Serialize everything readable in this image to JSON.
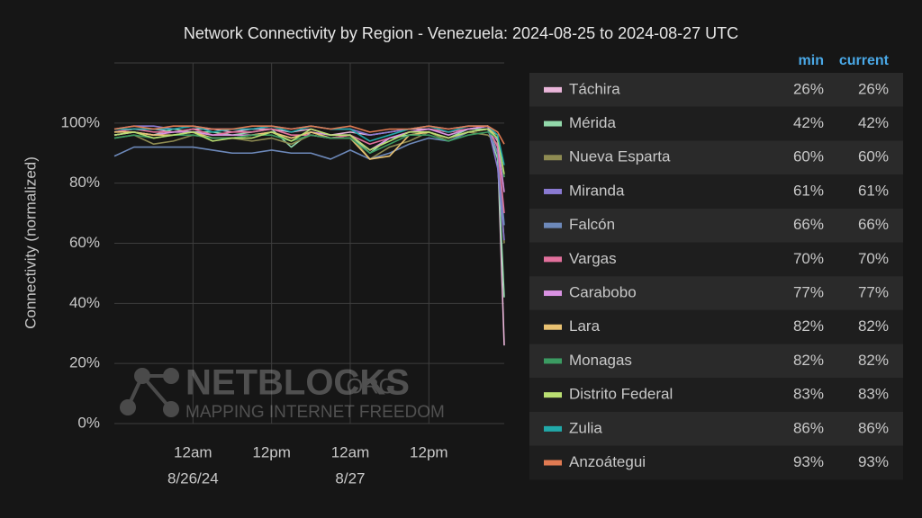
{
  "chart_data": {
    "type": "line",
    "title": "Network Connectivity by Region - Venezuela: 2024-08-25 to 2024-08-27 UTC",
    "y_label": "Connectivity (normalized)",
    "x": [
      0,
      3,
      6,
      9,
      12,
      15,
      18,
      21,
      24,
      27,
      30,
      33,
      36,
      39,
      42,
      45,
      48,
      51,
      54,
      57,
      58.5,
      59.5
    ],
    "xlim": [
      0,
      59.5
    ],
    "xticks": [
      {
        "value": 12,
        "label": "12am"
      },
      {
        "value": 24,
        "label": "12pm"
      },
      {
        "value": 36,
        "label": "12am"
      },
      {
        "value": 48,
        "label": "12pm"
      }
    ],
    "xtick_dates": [
      {
        "value": 12,
        "label": "8/26/24"
      },
      {
        "value": 36,
        "label": "8/27"
      }
    ],
    "ylim": [
      0,
      120
    ],
    "yticks": [
      {
        "value": 0,
        "label": "0%"
      },
      {
        "value": 20,
        "label": "20%"
      },
      {
        "value": 40,
        "label": "40%"
      },
      {
        "value": 60,
        "label": "60%"
      },
      {
        "value": 80,
        "label": "80%"
      },
      {
        "value": 100,
        "label": "100%"
      }
    ],
    "grid": true,
    "legend_headers": [
      "min",
      "current"
    ],
    "series": [
      {
        "name": "Táchira",
        "color": "#eab6da",
        "min": "26%",
        "current": "26%",
        "values": [
          97,
          98,
          98,
          97,
          98,
          98,
          97,
          98,
          98,
          97,
          98,
          96,
          97,
          96,
          97,
          98,
          98,
          97,
          98,
          99,
          90,
          26
        ]
      },
      {
        "name": "Mérida",
        "color": "#92d8aa",
        "min": "42%",
        "current": "42%",
        "values": [
          96,
          97,
          96,
          98,
          97,
          97,
          96,
          97,
          98,
          92,
          97,
          95,
          96,
          90,
          95,
          96,
          97,
          95,
          98,
          98,
          88,
          42
        ]
      },
      {
        "name": "Nueva Esparta",
        "color": "#8e8b52",
        "min": "60%",
        "current": "60%",
        "values": [
          95,
          96,
          93,
          94,
          96,
          95,
          95,
          94,
          95,
          93,
          96,
          95,
          96,
          88,
          92,
          94,
          97,
          94,
          97,
          96,
          93,
          60
        ]
      },
      {
        "name": "Miranda",
        "color": "#8a7ad2",
        "min": "61%",
        "current": "61%",
        "values": [
          98,
          99,
          99,
          98,
          99,
          98,
          98,
          98,
          99,
          98,
          99,
          98,
          98,
          96,
          97,
          98,
          99,
          98,
          99,
          99,
          85,
          61
        ]
      },
      {
        "name": "Falcón",
        "color": "#6d89ba",
        "min": "66%",
        "current": "66%",
        "values": [
          89,
          92,
          92,
          92,
          92,
          91,
          90,
          90,
          91,
          90,
          90,
          88,
          91,
          88,
          90,
          93,
          95,
          94,
          97,
          98,
          90,
          66
        ]
      },
      {
        "name": "Vargas",
        "color": "#e2709c",
        "min": "70%",
        "current": "70%",
        "values": [
          97,
          98,
          97,
          97,
          98,
          96,
          97,
          97,
          98,
          96,
          96,
          95,
          96,
          93,
          95,
          97,
          98,
          97,
          98,
          99,
          92,
          70
        ]
      },
      {
        "name": "Carabobo",
        "color": "#d992e2",
        "min": "77%",
        "current": "77%",
        "values": [
          96,
          97,
          96,
          97,
          97,
          96,
          96,
          96,
          97,
          95,
          97,
          96,
          96,
          91,
          95,
          97,
          98,
          96,
          98,
          99,
          94,
          77
        ]
      },
      {
        "name": "Lara",
        "color": "#e9c272",
        "min": "82%",
        "current": "82%",
        "values": [
          97,
          97,
          96,
          96,
          97,
          95,
          95,
          96,
          97,
          95,
          97,
          95,
          95,
          88,
          89,
          96,
          97,
          95,
          97,
          98,
          96,
          82
        ]
      },
      {
        "name": "Monagas",
        "color": "#3b9b62",
        "min": "82%",
        "current": "82%",
        "values": [
          95,
          96,
          95,
          96,
          96,
          95,
          95,
          96,
          96,
          94,
          96,
          95,
          95,
          90,
          93,
          96,
          96,
          94,
          96,
          97,
          95,
          82
        ]
      },
      {
        "name": "Distrito Federal",
        "color": "#badf72",
        "min": "83%",
        "current": "83%",
        "values": [
          96,
          97,
          95,
          96,
          97,
          94,
          95,
          95,
          97,
          94,
          98,
          96,
          96,
          91,
          94,
          97,
          97,
          95,
          97,
          98,
          95,
          83
        ]
      },
      {
        "name": "Zulia",
        "color": "#21a9a9",
        "min": "86%",
        "current": "86%",
        "values": [
          98,
          98,
          98,
          98,
          99,
          97,
          98,
          98,
          99,
          97,
          99,
          98,
          98,
          94,
          96,
          98,
          99,
          97,
          99,
          99,
          96,
          86
        ]
      },
      {
        "name": "Anzoátegui",
        "color": "#e07a52",
        "min": "93%",
        "current": "93%",
        "values": [
          98,
          99,
          98,
          99,
          99,
          98,
          98,
          99,
          99,
          98,
          99,
          98,
          99,
          97,
          98,
          98,
          99,
          98,
          99,
          99,
          97,
          93
        ]
      }
    ]
  },
  "watermark": {
    "brand": "NETBLOCKS",
    "suffix": ".ORG",
    "tagline": "MAPPING INTERNET FREEDOM"
  }
}
